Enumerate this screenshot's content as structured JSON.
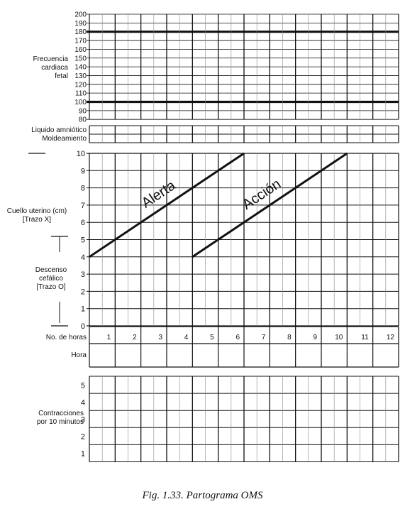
{
  "caption": "Fig. 1.33. Partograma OMS",
  "chart_data": {
    "type": "line",
    "title": "",
    "sections": {
      "fhr": {
        "label_lines": [
          "Frecuencia",
          "cardiaca",
          "fetal"
        ],
        "ticks": [
          200,
          190,
          180,
          170,
          160,
          150,
          140,
          130,
          120,
          110,
          100,
          90,
          80
        ],
        "bold_levels": [
          180,
          100
        ]
      },
      "fluid": {
        "labels": [
          "Liquido amniótico",
          "Moldeamiento"
        ]
      },
      "cervix": {
        "ylabel_lines": [
          "Cuello uterino (cm)",
          "[Trazo X]"
        ],
        "descent_label_lines": [
          "Descenso",
          "cefálico",
          "[Trazo O]"
        ],
        "ticks": [
          10,
          9,
          8,
          7,
          6,
          5,
          4,
          3,
          2,
          1,
          0
        ],
        "ylim": [
          0,
          10
        ]
      },
      "hours": {
        "label": "No. de horas",
        "values": [
          "1",
          "2",
          "3",
          "4",
          "5",
          "6",
          "7",
          "8",
          "9",
          "10",
          "11",
          "12"
        ]
      },
      "time": {
        "label": "Hora"
      },
      "contractions": {
        "label_lines": [
          "Contracciones",
          "por 10 minutos"
        ],
        "ticks": [
          5,
          4,
          3,
          2,
          1
        ]
      }
    },
    "xlim": [
      0,
      12
    ],
    "series": [
      {
        "name": "Alerta",
        "x": [
          0,
          6
        ],
        "y": [
          4,
          10
        ]
      },
      {
        "name": "Acción",
        "x": [
          4,
          10
        ],
        "y": [
          4,
          10
        ]
      }
    ]
  }
}
